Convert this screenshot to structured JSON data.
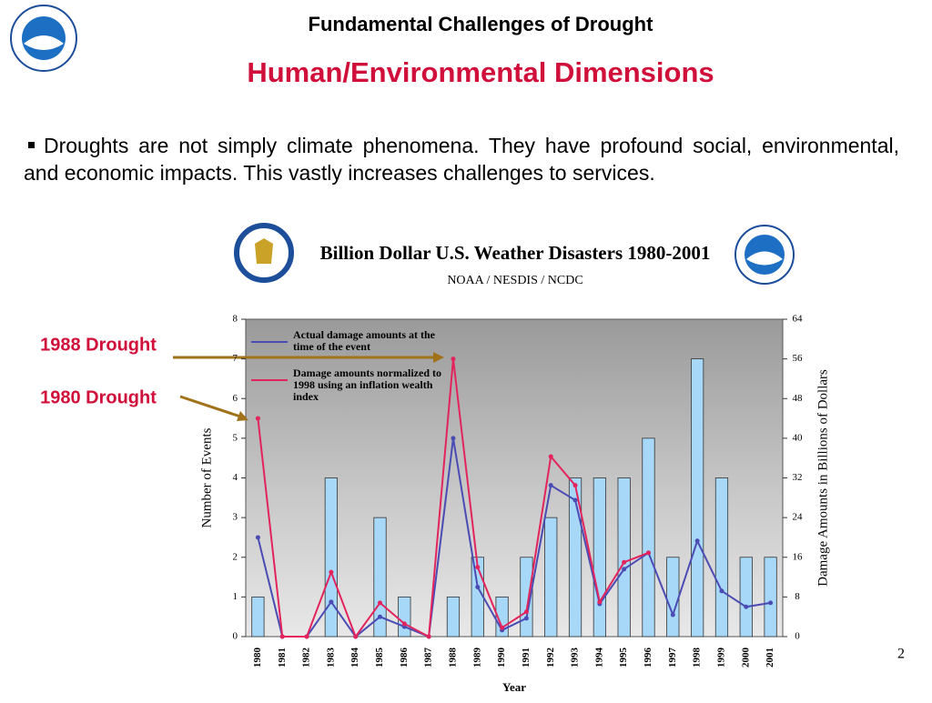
{
  "slide": {
    "title": "Fundamental Challenges of Drought",
    "subtitle": "Human/Environmental Dimensions",
    "bullet": "Droughts are not simply climate phenomena. They have profound social, environmental, and economic impacts. This vastly increases challenges to services.",
    "annotations": [
      "1988 Drought",
      "1980 Drought"
    ],
    "page_number": "2"
  },
  "chart_data": {
    "type": "bar",
    "title": "Billion Dollar U.S. Weather Disasters 1980-2001",
    "subtitle": "NOAA / NESDIS / NCDC",
    "x_label": "Year",
    "y_label": "Number of Events",
    "y2_label": "Damage Amounts in Billions of Dollars",
    "categories": [
      "1980",
      "1981",
      "1982",
      "1983",
      "1984",
      "1985",
      "1986",
      "1987",
      "1988",
      "1989",
      "1990",
      "1991",
      "1992",
      "1993",
      "1994",
      "1995",
      "1996",
      "1997",
      "1998",
      "1999",
      "2000",
      "2001"
    ],
    "ylim": [
      0,
      8
    ],
    "yticks": [
      0,
      1,
      2,
      3,
      4,
      5,
      6,
      7,
      8
    ],
    "y2lim": [
      0,
      64
    ],
    "y2ticks": [
      0,
      8,
      16,
      24,
      32,
      40,
      48,
      56,
      64
    ],
    "series": [
      {
        "type": "bar",
        "color": "#a8d8f8",
        "values": [
          1,
          0,
          0,
          4,
          0,
          3,
          1,
          0,
          1,
          2,
          1,
          2,
          3,
          4,
          4,
          4,
          5,
          2,
          7,
          4,
          2,
          2
        ]
      },
      {
        "type": "line",
        "axis": "y2",
        "name": "Actual damage amounts at the time of the event",
        "color": "#4b4bb4",
        "values": [
          20,
          0,
          0,
          7,
          0,
          4,
          2,
          0,
          40,
          10,
          1.3,
          3.7,
          30.5,
          27.5,
          6.6,
          13.6,
          16.9,
          4.4,
          19.3,
          9.2,
          6,
          6.8
        ]
      },
      {
        "type": "line",
        "axis": "y2",
        "name": "Damage amounts normalized to 1998 using an inflation wealth index",
        "color": "#e3245c",
        "values": [
          44,
          0,
          0,
          13,
          0,
          6.8,
          2.6,
          0,
          56,
          14,
          1.8,
          5,
          36.3,
          30.5,
          7,
          15,
          16.9,
          null,
          null,
          null,
          null,
          null
        ]
      }
    ]
  }
}
